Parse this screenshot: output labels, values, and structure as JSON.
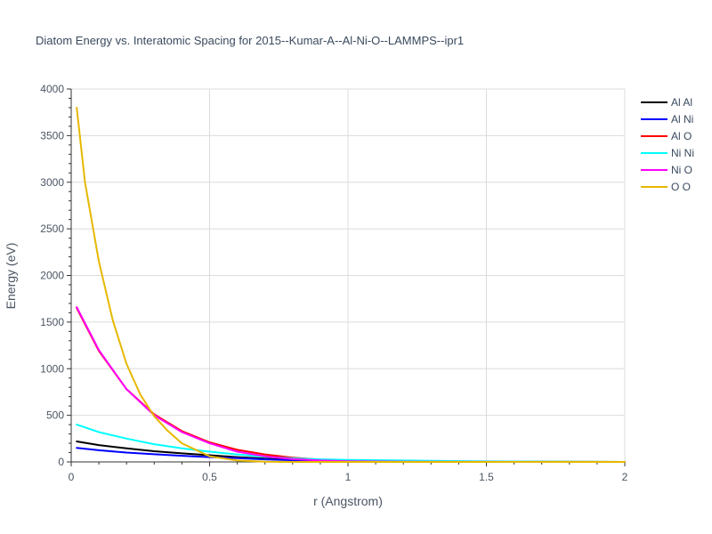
{
  "chart_data": {
    "type": "line",
    "title": "Diatom Energy vs. Interatomic Spacing for 2015--Kumar-A--Al-Ni-O--LAMMPS--ipr1",
    "xlabel": "r (Angstrom)",
    "ylabel": "Energy (eV)",
    "xlim": [
      0,
      2
    ],
    "ylim": [
      0,
      4000
    ],
    "xticks": [
      0,
      0.5,
      1,
      1.5,
      2
    ],
    "xtick_labels": [
      "0",
      "0.5",
      "1",
      "1.5",
      "2"
    ],
    "yticks": [
      0,
      500,
      1000,
      1500,
      2000,
      2500,
      3000,
      3500,
      4000
    ],
    "ytick_labels": [
      "0",
      "500",
      "1000",
      "1500",
      "2000",
      "2500",
      "3000",
      "3500",
      "4000"
    ],
    "grid": true,
    "legend_position": "top-right",
    "series": [
      {
        "name": "Al Al",
        "color": "#000000",
        "x": [
          0.02,
          0.1,
          0.2,
          0.3,
          0.4,
          0.5,
          0.6,
          0.7,
          0.8,
          0.9,
          1.0,
          1.2,
          1.5,
          2.0
        ],
        "y": [
          220,
          180,
          145,
          115,
          92,
          72,
          52,
          35,
          22,
          14,
          8,
          4,
          2,
          0
        ]
      },
      {
        "name": "Al Ni",
        "color": "#0000ff",
        "x": [
          0.02,
          0.1,
          0.2,
          0.3,
          0.4,
          0.5,
          0.6,
          0.7,
          0.8,
          0.9,
          1.0,
          1.2,
          1.5,
          2.0
        ],
        "y": [
          150,
          125,
          100,
          82,
          66,
          52,
          40,
          28,
          18,
          11,
          6,
          3,
          1,
          0
        ]
      },
      {
        "name": "Al O",
        "color": "#ff0000",
        "x": [
          0.02,
          0.1,
          0.2,
          0.3,
          0.4,
          0.5,
          0.6,
          0.7,
          0.8,
          0.9,
          1.0,
          1.2,
          1.5,
          2.0
        ],
        "y": [
          1650,
          1190,
          780,
          510,
          330,
          210,
          130,
          80,
          45,
          25,
          12,
          5,
          2,
          0
        ]
      },
      {
        "name": "Ni Ni",
        "color": "#00ffff",
        "x": [
          0.02,
          0.1,
          0.2,
          0.3,
          0.4,
          0.5,
          0.6,
          0.7,
          0.8,
          0.9,
          1.0,
          1.2,
          1.3,
          1.5,
          2.0
        ],
        "y": [
          400,
          320,
          250,
          190,
          145,
          110,
          80,
          55,
          38,
          28,
          22,
          15,
          12,
          6,
          0
        ]
      },
      {
        "name": "Ni O",
        "color": "#ff00ff",
        "x": [
          0.02,
          0.1,
          0.2,
          0.3,
          0.4,
          0.5,
          0.6,
          0.7,
          0.8,
          0.9,
          1.0,
          1.2,
          1.5,
          2.0
        ],
        "y": [
          1660,
          1200,
          780,
          500,
          320,
          200,
          110,
          60,
          30,
          15,
          8,
          3,
          1,
          0
        ]
      },
      {
        "name": "O O",
        "color": "#e6b800",
        "x": [
          0.02,
          0.05,
          0.1,
          0.15,
          0.2,
          0.25,
          0.3,
          0.35,
          0.4,
          0.5,
          0.6,
          0.7,
          0.8,
          0.9,
          1.0,
          1.2,
          1.5,
          2.0
        ],
        "y": [
          3800,
          3000,
          2150,
          1520,
          1050,
          720,
          490,
          330,
          200,
          60,
          15,
          3,
          0,
          0,
          0,
          0,
          0,
          0
        ]
      }
    ]
  }
}
